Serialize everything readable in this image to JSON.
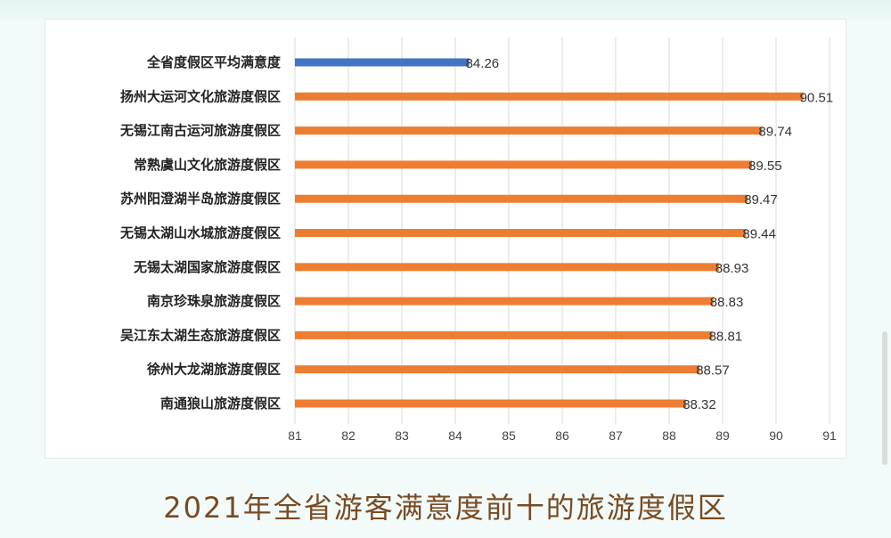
{
  "caption": "2021年全省游客满意度前十的旅游度假区",
  "colors": {
    "highlight": "#4472c4",
    "bar": "#ed7d31",
    "grid": "#d9d9d9"
  },
  "chart_data": {
    "type": "bar",
    "orientation": "horizontal",
    "title": "",
    "xlabel": "",
    "ylabel": "",
    "xlim": [
      81,
      91
    ],
    "xticks": [
      81,
      82,
      83,
      84,
      85,
      86,
      87,
      88,
      89,
      90,
      91
    ],
    "grid": "vertical",
    "legend": "none",
    "categories": [
      "全省度假区平均满意度",
      "扬州大运河文化旅游度假区",
      "无锡江南古运河旅游度假区",
      "常熟虞山文化旅游度假区",
      "苏州阳澄湖半岛旅游度假区",
      "无锡太湖山水城旅游度假区",
      "无锡太湖国家旅游度假区",
      "南京珍珠泉旅游度假区",
      "吴江东太湖生态旅游度假区",
      "徐州大龙湖旅游度假区",
      "南通狼山旅游度假区"
    ],
    "values": [
      84.26,
      90.51,
      89.74,
      89.55,
      89.47,
      89.44,
      88.93,
      88.83,
      88.81,
      88.57,
      88.32
    ],
    "value_labels": [
      "84.26",
      "90.51",
      "89.74",
      "89.55",
      "89.47",
      "89.44",
      "88.93",
      "88.83",
      "88.81",
      "88.57",
      "88.32"
    ],
    "highlight_index": 0
  }
}
